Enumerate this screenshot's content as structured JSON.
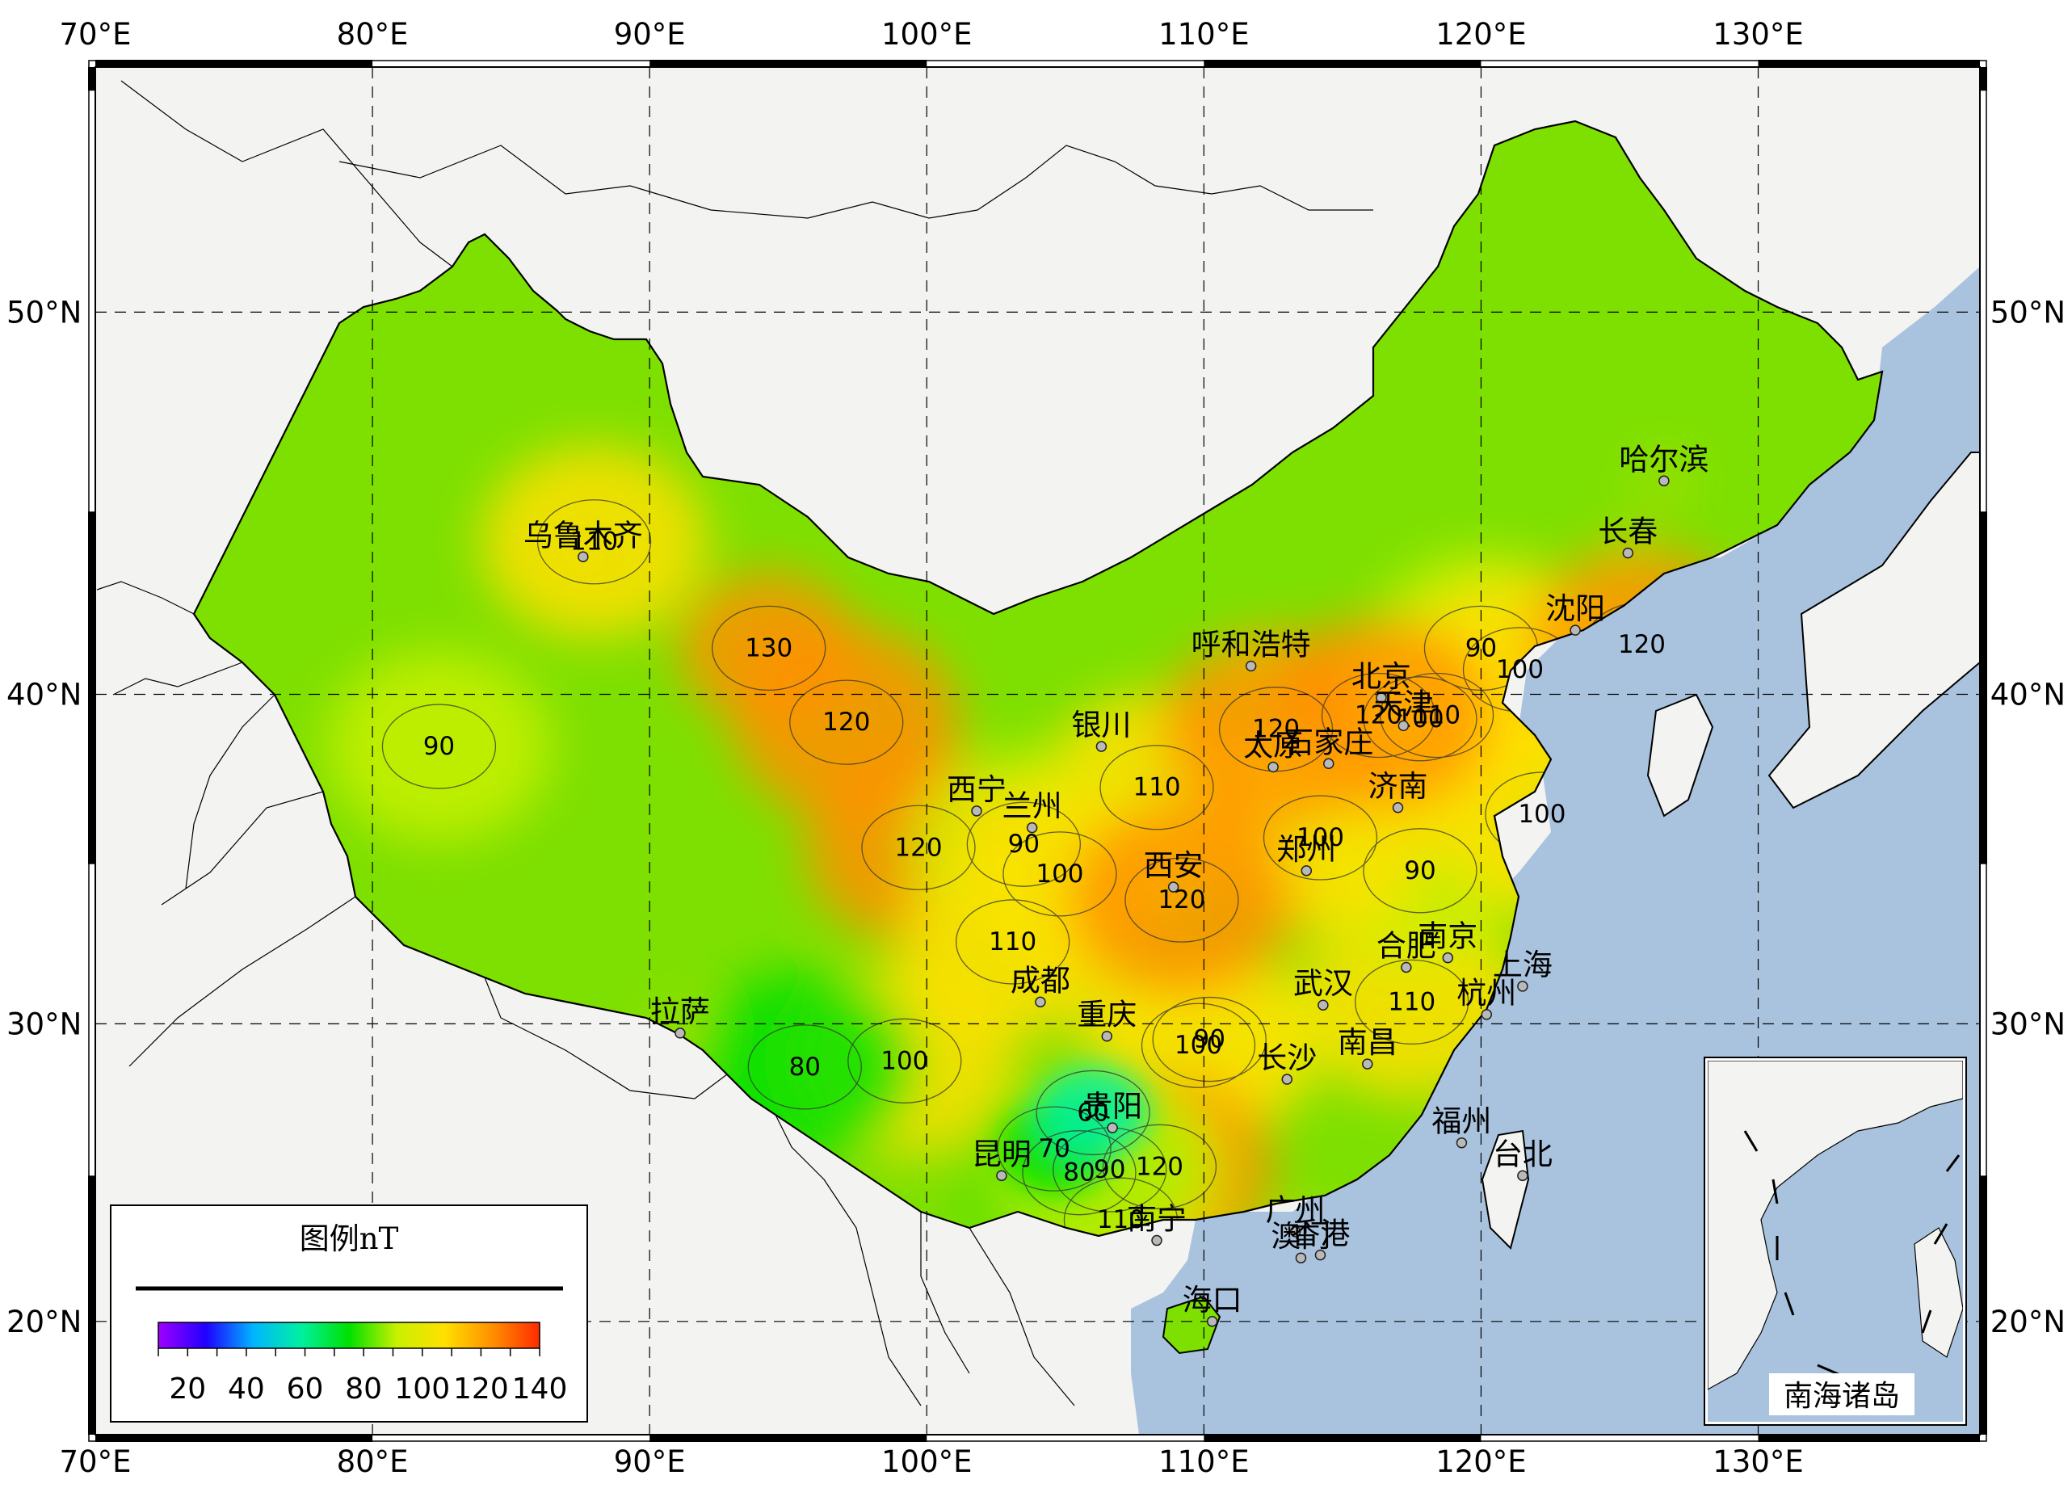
{
  "map": {
    "lon_ticks": [
      "70°E",
      "80°E",
      "90°E",
      "100°E",
      "110°E",
      "120°E",
      "130°E"
    ],
    "lat_ticks": [
      "20°N",
      "30°N",
      "40°N",
      "50°N"
    ],
    "extent": {
      "lon_min": 70,
      "lon_max": 138,
      "lat_min": 16,
      "lat_max": 55.5
    },
    "colors": {
      "ocean": "#a9c3de",
      "land": "#f3f3f1"
    }
  },
  "legend": {
    "title": "图例nT",
    "ticks": [
      "20",
      "40",
      "60",
      "80",
      "100",
      "120",
      "140"
    ],
    "range": [
      10,
      140
    ],
    "colormap": [
      "#a000ff",
      "#1f00ff",
      "#00b6ff",
      "#00f0a0",
      "#00e000",
      "#c8f000",
      "#ffe000",
      "#ff9000",
      "#ff2a00"
    ]
  },
  "inset": {
    "label": "南海诸岛"
  },
  "cities": [
    {
      "name": "乌鲁木齐",
      "lon": 87.6,
      "lat": 43.8
    },
    {
      "name": "哈尔滨",
      "lon": 126.6,
      "lat": 45.8
    },
    {
      "name": "长春",
      "lon": 125.3,
      "lat": 43.9
    },
    {
      "name": "沈阳",
      "lon": 123.4,
      "lat": 41.8
    },
    {
      "name": "呼和浩特",
      "lon": 111.7,
      "lat": 40.8
    },
    {
      "name": "北京",
      "lon": 116.4,
      "lat": 39.9
    },
    {
      "name": "天津",
      "lon": 117.2,
      "lat": 39.1
    },
    {
      "name": "银川",
      "lon": 106.3,
      "lat": 38.5
    },
    {
      "name": "太原",
      "lon": 112.5,
      "lat": 37.9
    },
    {
      "name": "石家庄",
      "lon": 114.5,
      "lat": 38.0
    },
    {
      "name": "济南",
      "lon": 117.0,
      "lat": 36.7
    },
    {
      "name": "西宁",
      "lon": 101.8,
      "lat": 36.6
    },
    {
      "name": "兰州",
      "lon": 103.8,
      "lat": 36.1
    },
    {
      "name": "郑州",
      "lon": 113.7,
      "lat": 34.8
    },
    {
      "name": "西安",
      "lon": 108.9,
      "lat": 34.3
    },
    {
      "name": "合肥",
      "lon": 117.3,
      "lat": 31.8
    },
    {
      "name": "南京",
      "lon": 118.8,
      "lat": 32.1
    },
    {
      "name": "上海",
      "lon": 121.5,
      "lat": 31.2
    },
    {
      "name": "成都",
      "lon": 104.1,
      "lat": 30.7
    },
    {
      "name": "武汉",
      "lon": 114.3,
      "lat": 30.6
    },
    {
      "name": "杭州",
      "lon": 120.2,
      "lat": 30.3
    },
    {
      "name": "拉萨",
      "lon": 91.1,
      "lat": 29.7
    },
    {
      "name": "重庆",
      "lon": 106.5,
      "lat": 29.6
    },
    {
      "name": "南昌",
      "lon": 115.9,
      "lat": 28.7
    },
    {
      "name": "长沙",
      "lon": 113.0,
      "lat": 28.2
    },
    {
      "name": "贵阳",
      "lon": 106.7,
      "lat": 26.6
    },
    {
      "name": "福州",
      "lon": 119.3,
      "lat": 26.1
    },
    {
      "name": "昆明",
      "lon": 102.7,
      "lat": 25.0
    },
    {
      "name": "台北",
      "lon": 121.5,
      "lat": 25.0
    },
    {
      "name": "广州",
      "lon": 113.3,
      "lat": 23.1
    },
    {
      "name": "南宁",
      "lon": 108.3,
      "lat": 22.8
    },
    {
      "name": "澳门",
      "lon": 113.5,
      "lat": 22.2
    },
    {
      "name": "香港",
      "lon": 114.2,
      "lat": 22.3
    },
    {
      "name": "海口",
      "lon": 110.3,
      "lat": 20.0
    }
  ],
  "contour_labels": [
    {
      "text": "130",
      "lon": 94.3,
      "lat": 41.3
    },
    {
      "text": "120",
      "lon": 97.1,
      "lat": 39.2
    },
    {
      "text": "120",
      "lon": 99.7,
      "lat": 35.5
    },
    {
      "text": "110",
      "lon": 88.0,
      "lat": 44.2
    },
    {
      "text": "110",
      "lon": 108.3,
      "lat": 37.3
    },
    {
      "text": "110",
      "lon": 103.1,
      "lat": 32.6
    },
    {
      "text": "110",
      "lon": 117.5,
      "lat": 30.7
    },
    {
      "text": "110",
      "lon": 118.4,
      "lat": 39.4
    },
    {
      "text": "110",
      "lon": 107.0,
      "lat": 23.5
    },
    {
      "text": "90",
      "lon": 82.4,
      "lat": 38.5
    },
    {
      "text": "90",
      "lon": 120.0,
      "lat": 41.3
    },
    {
      "text": "90",
      "lon": 103.5,
      "lat": 35.6
    },
    {
      "text": "90",
      "lon": 117.8,
      "lat": 34.8
    },
    {
      "text": "90",
      "lon": 110.2,
      "lat": 29.5
    },
    {
      "text": "100",
      "lon": 104.8,
      "lat": 34.7
    },
    {
      "text": "100",
      "lon": 121.4,
      "lat": 40.7
    },
    {
      "text": "100",
      "lon": 117.8,
      "lat": 39.3
    },
    {
      "text": "100",
      "lon": 122.2,
      "lat": 36.5
    },
    {
      "text": "100",
      "lon": 114.2,
      "lat": 35.8
    },
    {
      "text": "100",
      "lon": 109.8,
      "lat": 29.3
    },
    {
      "text": "100",
      "lon": 99.2,
      "lat": 28.8
    },
    {
      "text": "120",
      "lon": 125.8,
      "lat": 41.4
    },
    {
      "text": "120",
      "lon": 109.2,
      "lat": 33.9
    },
    {
      "text": "120",
      "lon": 116.3,
      "lat": 39.4
    },
    {
      "text": "120",
      "lon": 112.6,
      "lat": 39.0
    },
    {
      "text": "120",
      "lon": 108.4,
      "lat": 25.3
    },
    {
      "text": "80",
      "lon": 95.6,
      "lat": 28.6
    },
    {
      "text": "80",
      "lon": 105.5,
      "lat": 25.1
    },
    {
      "text": "90",
      "lon": 106.6,
      "lat": 25.2
    },
    {
      "text": "70",
      "lon": 104.6,
      "lat": 25.9
    },
    {
      "text": "60",
      "lon": 106.0,
      "lat": 27.1
    }
  ]
}
